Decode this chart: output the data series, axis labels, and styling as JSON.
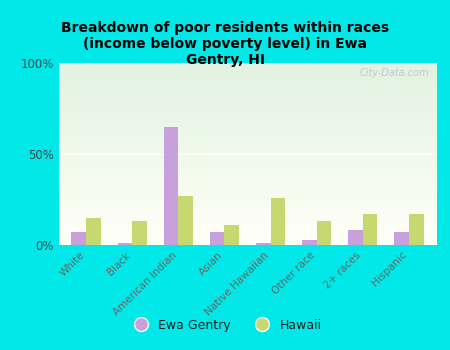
{
  "title": "Breakdown of poor residents within races\n(income below poverty level) in Ewa\nGentry, HI",
  "categories": [
    "White",
    "Black",
    "American Indian",
    "Asian",
    "Native Hawaiian",
    "Other race",
    "2+ races",
    "Hispanic"
  ],
  "ewa_gentry": [
    7,
    1,
    65,
    7,
    1,
    3,
    8,
    7
  ],
  "hawaii": [
    15,
    13,
    27,
    11,
    26,
    13,
    17,
    17
  ],
  "ewa_color": "#c8a0dc",
  "hawaii_color": "#c8d870",
  "bg_color": "#00e8e8",
  "ylim": [
    0,
    100
  ],
  "yticks": [
    0,
    50,
    100
  ],
  "ytick_labels": [
    "0%",
    "50%",
    "100%"
  ],
  "watermark": "City-Data.com",
  "bar_width": 0.32
}
